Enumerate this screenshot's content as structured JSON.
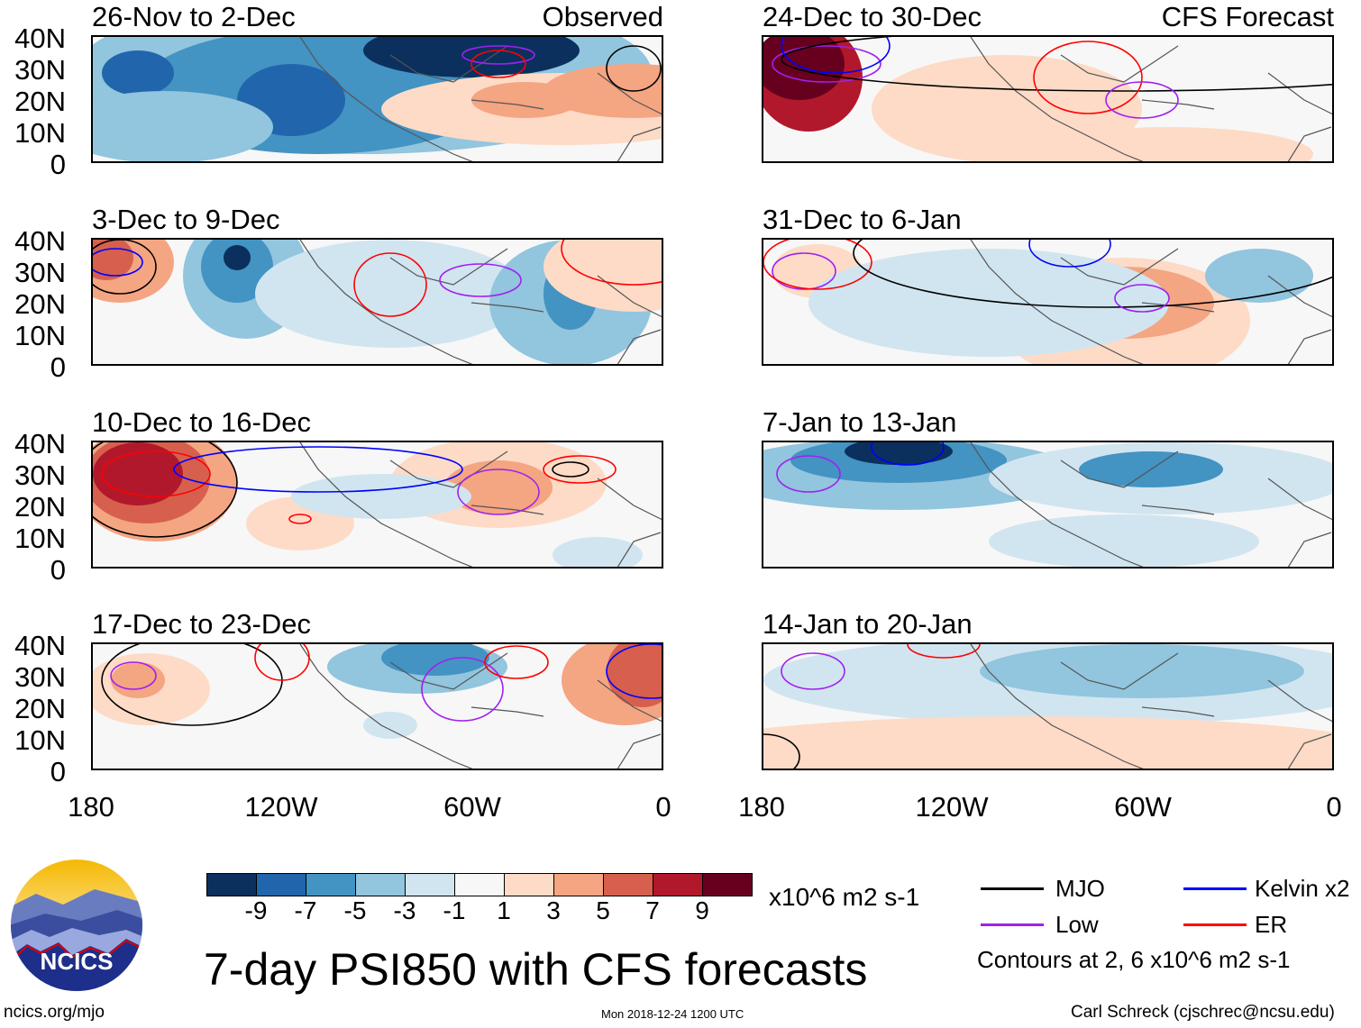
{
  "panels_left": [
    {
      "title": "26-Nov to 2-Dec",
      "tag": "Observed"
    },
    {
      "title": "3-Dec to 9-Dec"
    },
    {
      "title": "10-Dec to 16-Dec"
    },
    {
      "title": "17-Dec to 23-Dec"
    }
  ],
  "panels_right": [
    {
      "title": "24-Dec to 30-Dec",
      "tag": "CFS Forecast"
    },
    {
      "title": "31-Dec to 6-Jan"
    },
    {
      "title": "7-Jan to 13-Jan"
    },
    {
      "title": "14-Jan to 20-Jan"
    }
  ],
  "lat_labels": [
    "40N",
    "30N",
    "20N",
    "10N",
    "0"
  ],
  "lon_labels": [
    "180",
    "120W",
    "60W",
    "0"
  ],
  "colorbar": {
    "labels": [
      "-9",
      "-7",
      "-5",
      "-3",
      "-1",
      "1",
      "3",
      "5",
      "7",
      "9"
    ],
    "colors": [
      "#0b305e",
      "#2166ac",
      "#4393c3",
      "#92c5de",
      "#d1e5f0",
      "#f7f7f7",
      "#fddbc7",
      "#f4a582",
      "#d6604d",
      "#b2182b",
      "#67001f"
    ],
    "units": "x10^6 m2 s-1"
  },
  "title": "7-day PSI850 with CFS forecasts",
  "timestamp": "Mon 2018-12-24 1200 UTC",
  "url": "ncics.org/mjo",
  "author": "Carl Schreck (cjschrec@ncsu.edu)",
  "logo_text": "NCICS",
  "legend": {
    "items": [
      {
        "label": "MJO",
        "color": "#000000"
      },
      {
        "label": "Kelvin x2",
        "color": "#0000ff"
      },
      {
        "label": "Low",
        "color": "#a020f0"
      },
      {
        "label": "ER",
        "color": "#ff0000"
      }
    ],
    "note": "Contours at 2, 6 x10^6 m2 s-1"
  }
}
